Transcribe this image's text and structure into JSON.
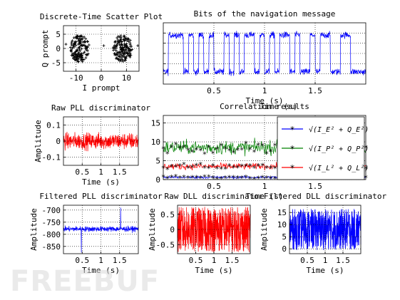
{
  "chart_data": [
    {
      "id": "scatter",
      "type": "scatter",
      "title": "Discrete-Time Scatter Plot",
      "xlabel": "I prompt",
      "ylabel": "Q prompt",
      "xlim": [
        -15,
        15
      ],
      "ylim": [
        -8,
        8
      ],
      "xticks": [
        -10,
        0,
        10
      ],
      "yticks": [
        -5,
        0,
        5
      ],
      "grid": true,
      "series": [
        {
          "color": "#0000ff",
          "marker": "point",
          "clusters": [
            {
              "cx": -8.5,
              "cy": 0,
              "rx": 3.8,
              "ry": 4.8
            },
            {
              "cx": 8.5,
              "cy": 0,
              "rx": 3.8,
              "ry": 4.8
            }
          ]
        }
      ]
    },
    {
      "id": "navbits",
      "type": "line",
      "title": "Bits of the navigation message",
      "xlabel": "Time (s)",
      "ylabel": "",
      "xlim": [
        0,
        2
      ],
      "ylim": [
        -15,
        15
      ],
      "xticks": [
        0.5,
        1,
        1.5
      ],
      "yticks": [
        -10,
        -5,
        0,
        5,
        10
      ],
      "show_yticklabels": false,
      "grid": true,
      "series": [
        {
          "color": "#0000ff",
          "amplitude": 9,
          "bits": [
            -1,
            1,
            1,
            1,
            -1,
            1,
            -1,
            1,
            -1,
            1,
            -1,
            -1,
            1,
            -1,
            1,
            -1,
            1,
            1,
            -1,
            1,
            -1,
            1,
            -1,
            1,
            1,
            -1,
            1,
            -1,
            -1,
            1,
            -1,
            1,
            1,
            -1,
            -1,
            1,
            1,
            -1,
            -1,
            -1
          ]
        }
      ]
    },
    {
      "id": "rawpll",
      "type": "line",
      "title": "Raw PLL discriminator",
      "xlabel": "Time (s)",
      "ylabel": "Amplitude",
      "xlim": [
        0,
        2
      ],
      "ylim": [
        -0.15,
        0.15
      ],
      "xticks": [
        0.5,
        1,
        1.5
      ],
      "yticks": [
        -0.1,
        0,
        0.1
      ],
      "grid": true,
      "series": [
        {
          "color": "#ff0000",
          "amplitude": 0.09
        }
      ]
    },
    {
      "id": "corr",
      "type": "line",
      "title": "Correlation results",
      "overlay_title": "Time (s)",
      "xlabel": "Time (s)",
      "ylabel": "",
      "xlim": [
        0,
        2
      ],
      "ylim": [
        0,
        17
      ],
      "xticks": [
        0.5,
        1,
        1.5
      ],
      "yticks": [
        0,
        5,
        10,
        15
      ],
      "grid": true,
      "legend": "upper-right",
      "series": [
        {
          "color": "#0000ff",
          "label": "√(I_E² + Q_E²)",
          "sub": "E",
          "mean": 0.6,
          "spread": 0.6
        },
        {
          "color": "#008000",
          "label": "√(I_P² + Q_P²)",
          "sub": "P",
          "mean": 8.5,
          "spread": 3.2
        },
        {
          "color": "#ff0000",
          "label": "√(I_L² + Q_L²)",
          "sub": "L",
          "mean": 3.5,
          "spread": 1.5
        }
      ]
    },
    {
      "id": "filtpll",
      "type": "line",
      "title": "Filtered PLL discriminator",
      "xlabel": "Time (s)",
      "ylabel": "Amplitude",
      "xlim": [
        0,
        2
      ],
      "ylim": [
        -880,
        -680
      ],
      "xticks": [
        0.5,
        1,
        1.5
      ],
      "yticks": [
        -700,
        -750,
        -800,
        -850
      ],
      "grid": true,
      "series": [
        {
          "color": "#0000ff",
          "mean": -778,
          "spread": 18
        }
      ]
    },
    {
      "id": "rawdll",
      "type": "line",
      "title": "Raw DLL discriminator",
      "xlabel": "Time (s)",
      "ylabel": "Amplitude",
      "xlim": [
        0,
        2
      ],
      "ylim": [
        -0.8,
        0.8
      ],
      "xticks": [
        0.5,
        1,
        1.5
      ],
      "yticks": [
        -0.5,
        0,
        0.5
      ],
      "grid": true,
      "series": [
        {
          "color": "#ff0000",
          "mean": 0,
          "spread": 0.75
        }
      ]
    },
    {
      "id": "filtdll",
      "type": "line",
      "title": "Filtered DLL discriminator",
      "xlabel": "Time (s)",
      "ylabel": "Amplitude",
      "xlim": [
        0,
        2
      ],
      "ylim": [
        -2,
        18
      ],
      "xticks": [
        0.5,
        1,
        1.5
      ],
      "yticks": [
        0,
        5,
        10,
        15
      ],
      "grid": true,
      "series": [
        {
          "color": "#0000ff",
          "mean": 8,
          "spread": 8.5
        }
      ]
    }
  ],
  "watermark": "FREEBUF"
}
